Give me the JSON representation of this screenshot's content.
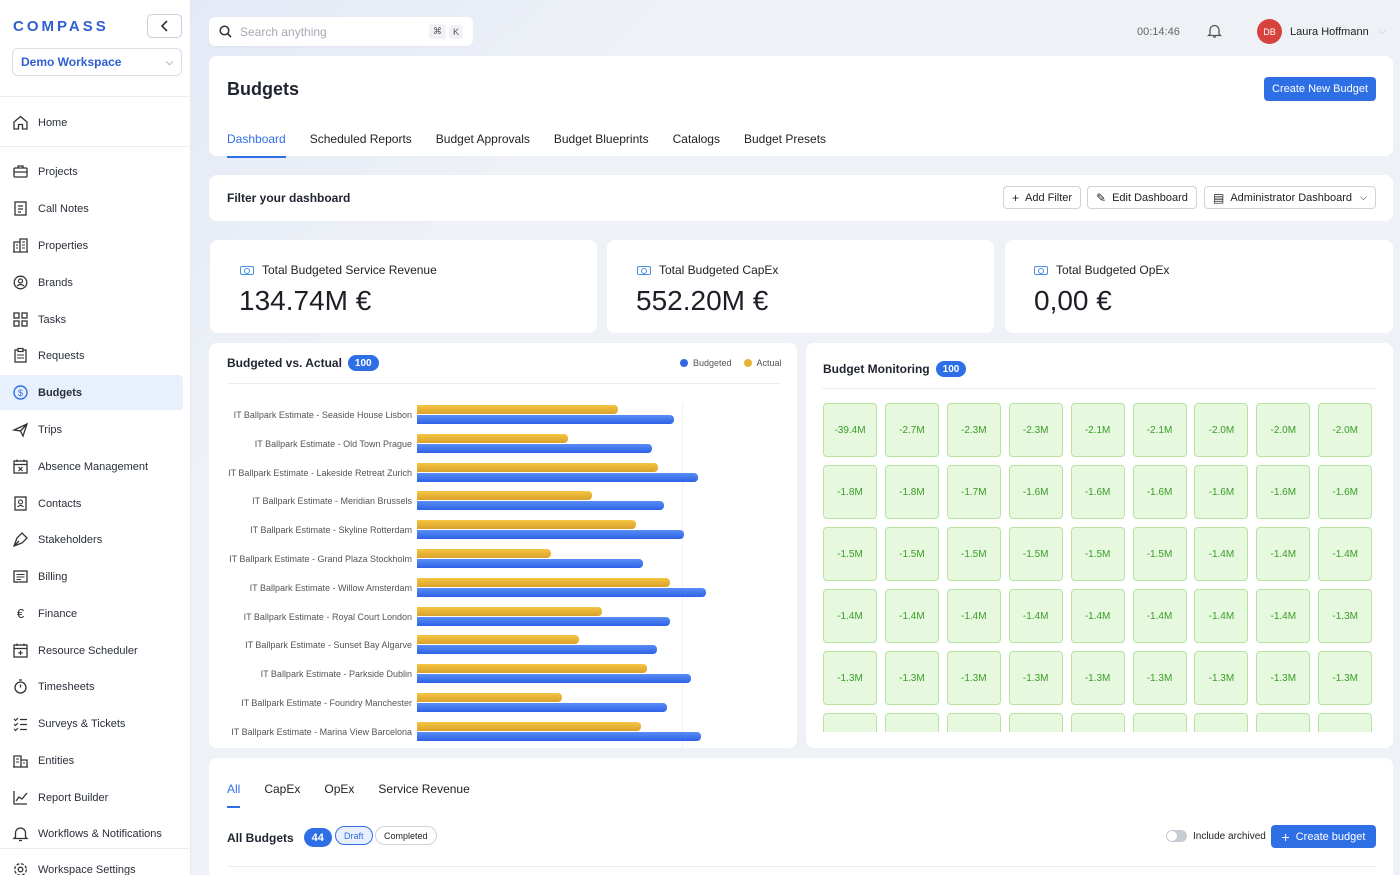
{
  "app": {
    "logo": "COMPASS",
    "workspace": "Demo Workspace"
  },
  "nav": [
    {
      "label": "Home",
      "icon": "home-icon"
    },
    {
      "label": "Projects",
      "icon": "briefcase-icon"
    },
    {
      "label": "Call Notes",
      "icon": "notes-icon"
    },
    {
      "label": "Properties",
      "icon": "building-icon"
    },
    {
      "label": "Brands",
      "icon": "badge-icon"
    },
    {
      "label": "Tasks",
      "icon": "grid-icon"
    },
    {
      "label": "Requests",
      "icon": "clipboard-icon"
    },
    {
      "label": "Budgets",
      "icon": "dollar-circle-icon",
      "active": true
    },
    {
      "label": "Trips",
      "icon": "plane-icon"
    },
    {
      "label": "Absence Management",
      "icon": "calendar-x-icon"
    },
    {
      "label": "Contacts",
      "icon": "contact-book-icon"
    },
    {
      "label": "Stakeholders",
      "icon": "pen-tool-icon"
    },
    {
      "label": "Billing",
      "icon": "invoice-icon"
    },
    {
      "label": "Finance",
      "icon": "euro-icon"
    },
    {
      "label": "Resource Scheduler",
      "icon": "calendar-plus-icon"
    },
    {
      "label": "Timesheets",
      "icon": "stopwatch-icon"
    },
    {
      "label": "Surveys & Tickets",
      "icon": "checklist-icon"
    },
    {
      "label": "Entities",
      "icon": "buildings-icon"
    },
    {
      "label": "Report Builder",
      "icon": "chart-line-icon"
    },
    {
      "label": "Workflows & Notifications",
      "icon": "bell-icon"
    },
    {
      "label": "Workspace Settings",
      "icon": "gear-icon"
    }
  ],
  "topbar": {
    "search_placeholder": "Search anything",
    "kbd1": "⌘",
    "kbd2": "K",
    "clock": "00:14:46",
    "user_initials": "DB",
    "user_name": "Laura Hoffmann"
  },
  "header": {
    "title": "Budgets",
    "create_button": "Create New Budget",
    "tabs": [
      "Dashboard",
      "Scheduled Reports",
      "Budget Approvals",
      "Budget Blueprints",
      "Catalogs",
      "Budget Presets"
    ]
  },
  "filter": {
    "title": "Filter your dashboard",
    "add_filter": "Add Filter",
    "edit_dashboard": "Edit Dashboard",
    "dashboard_select": "Administrator Dashboard"
  },
  "kpis": [
    {
      "label": "Total Budgeted Service Revenue",
      "value": "134.74M €"
    },
    {
      "label": "Total Budgeted CapEx",
      "value": "552.20M €"
    },
    {
      "label": "Total Budgeted OpEx",
      "value": "0,00 €"
    }
  ],
  "chart_section": {
    "title": "Budgeted vs. Actual",
    "count": "100",
    "legend_budgeted": "Budgeted",
    "legend_actual": "Actual"
  },
  "chart_data": {
    "type": "bar",
    "orientation": "horizontal",
    "title": "Budgeted vs. Actual",
    "categories": [
      "IT Ballpark Estimate - Seaside House Lisbon",
      "IT Ballpark Estimate - Old Town Prague",
      "IT Ballpark Estimate - Lakeside Retreat Zurich",
      "IT Ballpark Estimate - Meridian Brussels",
      "IT Ballpark Estimate - Skyline Rotterdam",
      "IT Ballpark Estimate - Grand Plaza Stockholm",
      "IT Ballpark Estimate - Willow Amsterdam",
      "IT Ballpark Estimate - Royal Court London",
      "IT Ballpark Estimate - Sunset Bay Algarve",
      "IT Ballpark Estimate - Parkside Dublin",
      "IT Ballpark Estimate - Foundry Manchester",
      "IT Ballpark Estimate - Marina View Barcelona"
    ],
    "series": [
      {
        "name": "Actual",
        "color": "#e8b235",
        "values": [
          118,
          89,
          142,
          103,
          129,
          79,
          149,
          109,
          95,
          135,
          85,
          132
        ]
      },
      {
        "name": "Budgeted",
        "color": "#2f67e8",
        "values": [
          151,
          138,
          165,
          145,
          157,
          133,
          170,
          149,
          141,
          161,
          147,
          167
        ]
      }
    ]
  },
  "monitoring": {
    "title": "Budget Monitoring",
    "count": "100",
    "tiles": [
      "-39.4M",
      "-2.7M",
      "-2.3M",
      "-2.3M",
      "-2.1M",
      "-2.1M",
      "-2.0M",
      "-2.0M",
      "-2.0M",
      "-1.8M",
      "-1.8M",
      "-1.7M",
      "-1.6M",
      "-1.6M",
      "-1.6M",
      "-1.6M",
      "-1.6M",
      "-1.6M",
      "-1.5M",
      "-1.5M",
      "-1.5M",
      "-1.5M",
      "-1.5M",
      "-1.5M",
      "-1.4M",
      "-1.4M",
      "-1.4M",
      "-1.4M",
      "-1.4M",
      "-1.4M",
      "-1.4M",
      "-1.4M",
      "-1.4M",
      "-1.4M",
      "-1.4M",
      "-1.3M",
      "-1.3M",
      "-1.3M",
      "-1.3M",
      "-1.3M",
      "-1.3M",
      "-1.3M",
      "-1.3M",
      "-1.3M",
      "-1.3M"
    ]
  },
  "budgets": {
    "tabs": [
      "All",
      "CapEx",
      "OpEx",
      "Service Revenue"
    ],
    "title": "All Budgets",
    "count": "44",
    "chip_draft": "Draft",
    "chip_completed": "Completed",
    "include_archived": "Include archived",
    "create_button": "Create budget"
  },
  "colors": {
    "accent": "#2f6fe6",
    "tile_bg": "#e6f8dd",
    "tile_text": "#3a9d2a"
  }
}
